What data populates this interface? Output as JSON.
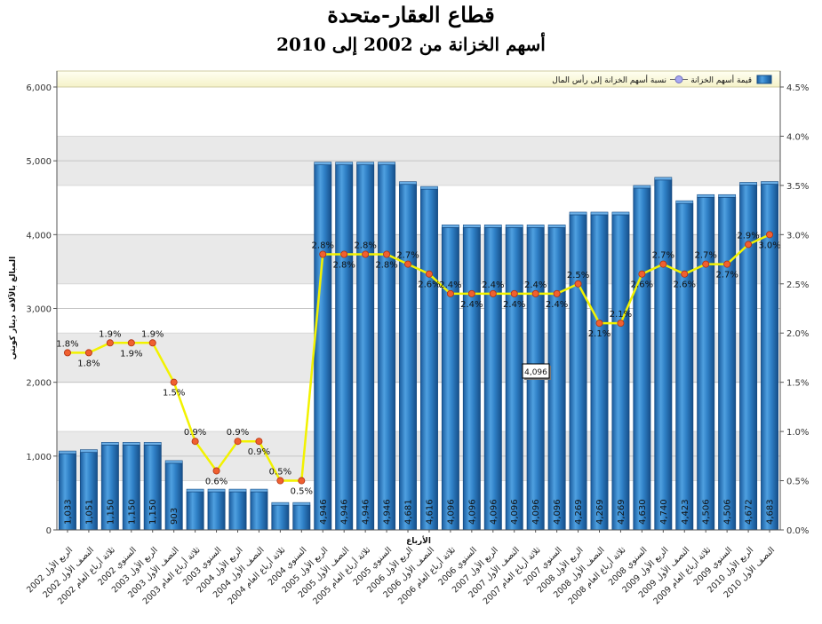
{
  "title": "قطاع العقار-متحدة",
  "subtitle": "أسهم الخزانة من 2002 إلى 2010",
  "chart_data": {
    "type": "bar",
    "title": "قطاع العقار-متحدة",
    "subtitle": "أسهم الخزانة من 2002 إلى 2010",
    "xlabel": "الأرباع",
    "ylabel": "المبالغ بالآلاف دينار كويتي",
    "ylim": [
      0,
      6000
    ],
    "yticks": [
      "0",
      "1,000",
      "2,000",
      "3,000",
      "4,000",
      "5,000",
      "6,000"
    ],
    "y2lim": [
      0,
      4.5
    ],
    "y2ticks": [
      "0.0%",
      "0.5%",
      "1.0%",
      "1.5%",
      "2.0%",
      "2.5%",
      "3.0%",
      "3.5%",
      "4.0%",
      "4.5%"
    ],
    "legend_position": "top",
    "categories": [
      "الربع الأول 2002",
      "النصف الأول 2002",
      "ثلاثة أرباع العام 2002",
      "السنوي 2002",
      "الربع الأول 2003",
      "النصف الأول 2003",
      "ثلاثة أرباع العام 2003",
      "السنوي 2003",
      "الربع الأول 2004",
      "النصف الأول 2004",
      "ثلاثة أرباع العام 2004",
      "السنوي 2004",
      "الربع الأول 2005",
      "النصف الأول 2005",
      "ثلاثة أرباع العام 2005",
      "السنوي 2005",
      "الربع الأول 2006",
      "النصف الأول 2006",
      "ثلاثة أرباع العام 2006",
      "السنوي 2006",
      "الربع الأول 2007",
      "النصف الأول 2007",
      "ثلاثة أرباع العام 2007",
      "السنوي 2007",
      "الربع الأول 2008",
      "النصف الأول 2008",
      "ثلاثة أرباع العام 2008",
      "السنوي 2008",
      "الربع الأول 2009",
      "النصف الأول 2009",
      "ثلاثة أرباع العام 2009",
      "السنوي 2009",
      "الربع الأول 2010",
      "النصف الأول 2010"
    ],
    "series": [
      {
        "name": "قيمة أسهم الخزانة",
        "axis": "left",
        "color": "#2f7fc4",
        "values": [
          1033,
          1051,
          1150,
          1150,
          1150,
          903,
          516,
          516,
          516,
          516,
          335,
          335,
          4946,
          4946,
          4946,
          4946,
          4681,
          4616,
          4096,
          4096,
          4096,
          4096,
          4096,
          4096,
          4269,
          4269,
          4269,
          4630,
          4740,
          4423,
          4506,
          4506,
          4672,
          4683
        ],
        "labels": [
          "1,033",
          "1,051",
          "1,150",
          "1,150",
          "1,150",
          "903",
          "",
          "",
          "",
          "",
          "",
          "",
          "4,946",
          "4,946",
          "4,946",
          "4,946",
          "4,681",
          "4,616",
          "4,096",
          "4,096",
          "4,096",
          "4,096",
          "4,096",
          "4,096",
          "4,269",
          "4,269",
          "4,269",
          "4,630",
          "4,740",
          "4,423",
          "4,506",
          "4,506",
          "4,672",
          "4,683"
        ]
      },
      {
        "name": "نسبة أسهم الخزانة إلى رأس المال",
        "axis": "right",
        "color": "#f2f200",
        "marker_color": "#f06030",
        "values": [
          1.8,
          1.8,
          1.9,
          1.9,
          1.9,
          1.5,
          0.9,
          0.6,
          0.9,
          0.9,
          0.5,
          0.5,
          2.8,
          2.8,
          2.8,
          2.8,
          2.7,
          2.6,
          2.4,
          2.4,
          2.4,
          2.4,
          2.4,
          2.4,
          2.5,
          2.1,
          2.1,
          2.6,
          2.7,
          2.6,
          2.7,
          2.7,
          2.9,
          3.0
        ],
        "labels": [
          "1.8%",
          "1.8%",
          "1.9%",
          "1.9%",
          "1.9%",
          "1.5%",
          "0.9%",
          "0.6%",
          "0.9%",
          "0.9%",
          "0.5%",
          "0.5%",
          "2.8%",
          "2.8%",
          "2.8%",
          "2.8%",
          "2.7%",
          "2.6%",
          "2.4%",
          "2.4%",
          "2.4%",
          "2.4%",
          "2.4%",
          "2.4%",
          "2.5%",
          "2.1%",
          "2.1%",
          "2.6%",
          "2.7%",
          "2.6%",
          "2.7%",
          "2.7%",
          "2.9%",
          "3.0%"
        ]
      }
    ],
    "tooltip": "4,096"
  }
}
